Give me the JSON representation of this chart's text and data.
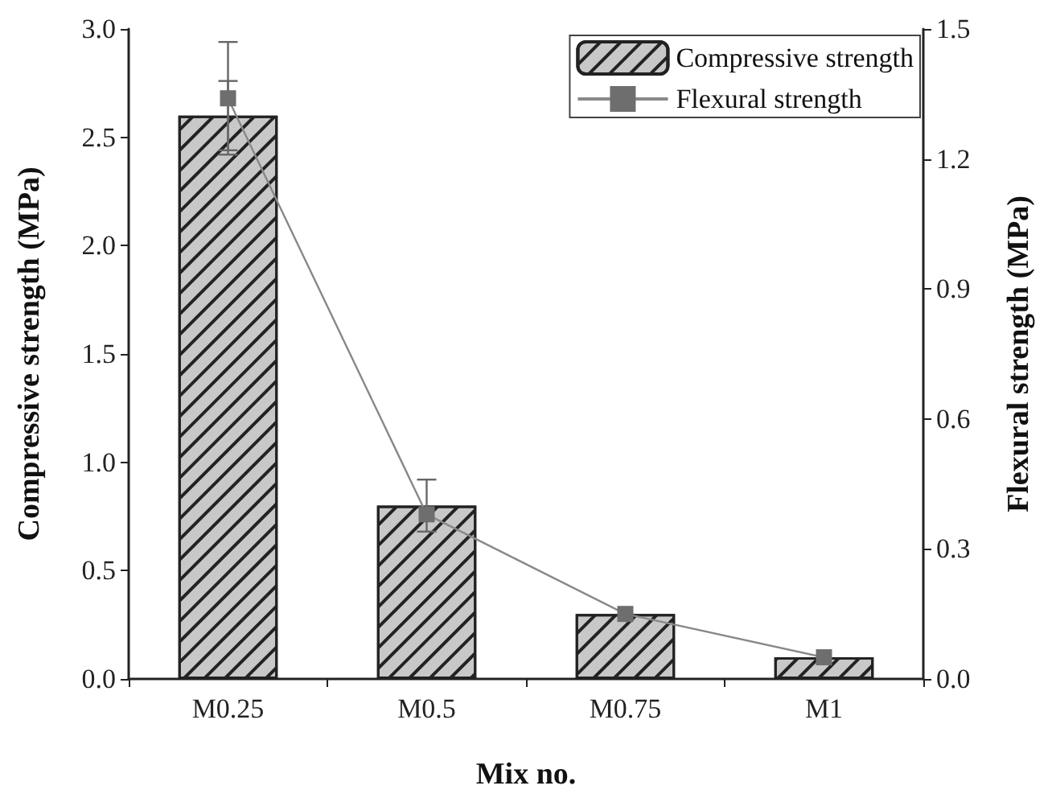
{
  "chart_data": {
    "type": "bar",
    "xlabel": "Mix no.",
    "ylabel": "Compressive strength (MPa)",
    "y2label": "Flexural strength (MPa)",
    "categories": [
      "M0.25",
      "M0.5",
      "M0.75",
      "M1"
    ],
    "series": [
      {
        "name": "Compressive strength",
        "color": "#c8c8c8",
        "values": [
          2.6,
          0.8,
          0.3,
          0.1
        ],
        "errors": [
          0.16,
          0.12,
          null,
          null
        ]
      },
      {
        "name": "Flexural strength",
        "type": "line",
        "axis": "y2",
        "color": "#6e6e6e",
        "values": [
          1.34,
          0.38,
          0.15,
          0.05
        ],
        "errors": [
          0.13,
          null,
          null,
          null
        ]
      }
    ],
    "ylim": [
      0,
      3.0
    ],
    "yticks": [
      {
        "value": 0,
        "label": "0.0"
      },
      0.5,
      {
        "value": 1,
        "label": "1.0"
      },
      1.5,
      {
        "value": 2,
        "label": "2.0"
      },
      2.5,
      {
        "value": 3,
        "label": "3.0"
      }
    ],
    "y2lim": [
      0,
      1.5
    ],
    "y2ticks": [
      {
        "value": 0,
        "label": "0.0"
      },
      0.3,
      0.6,
      0.9,
      1.2,
      1.5
    ],
    "legend": "top right",
    "marker": "square",
    "grid": false
  }
}
